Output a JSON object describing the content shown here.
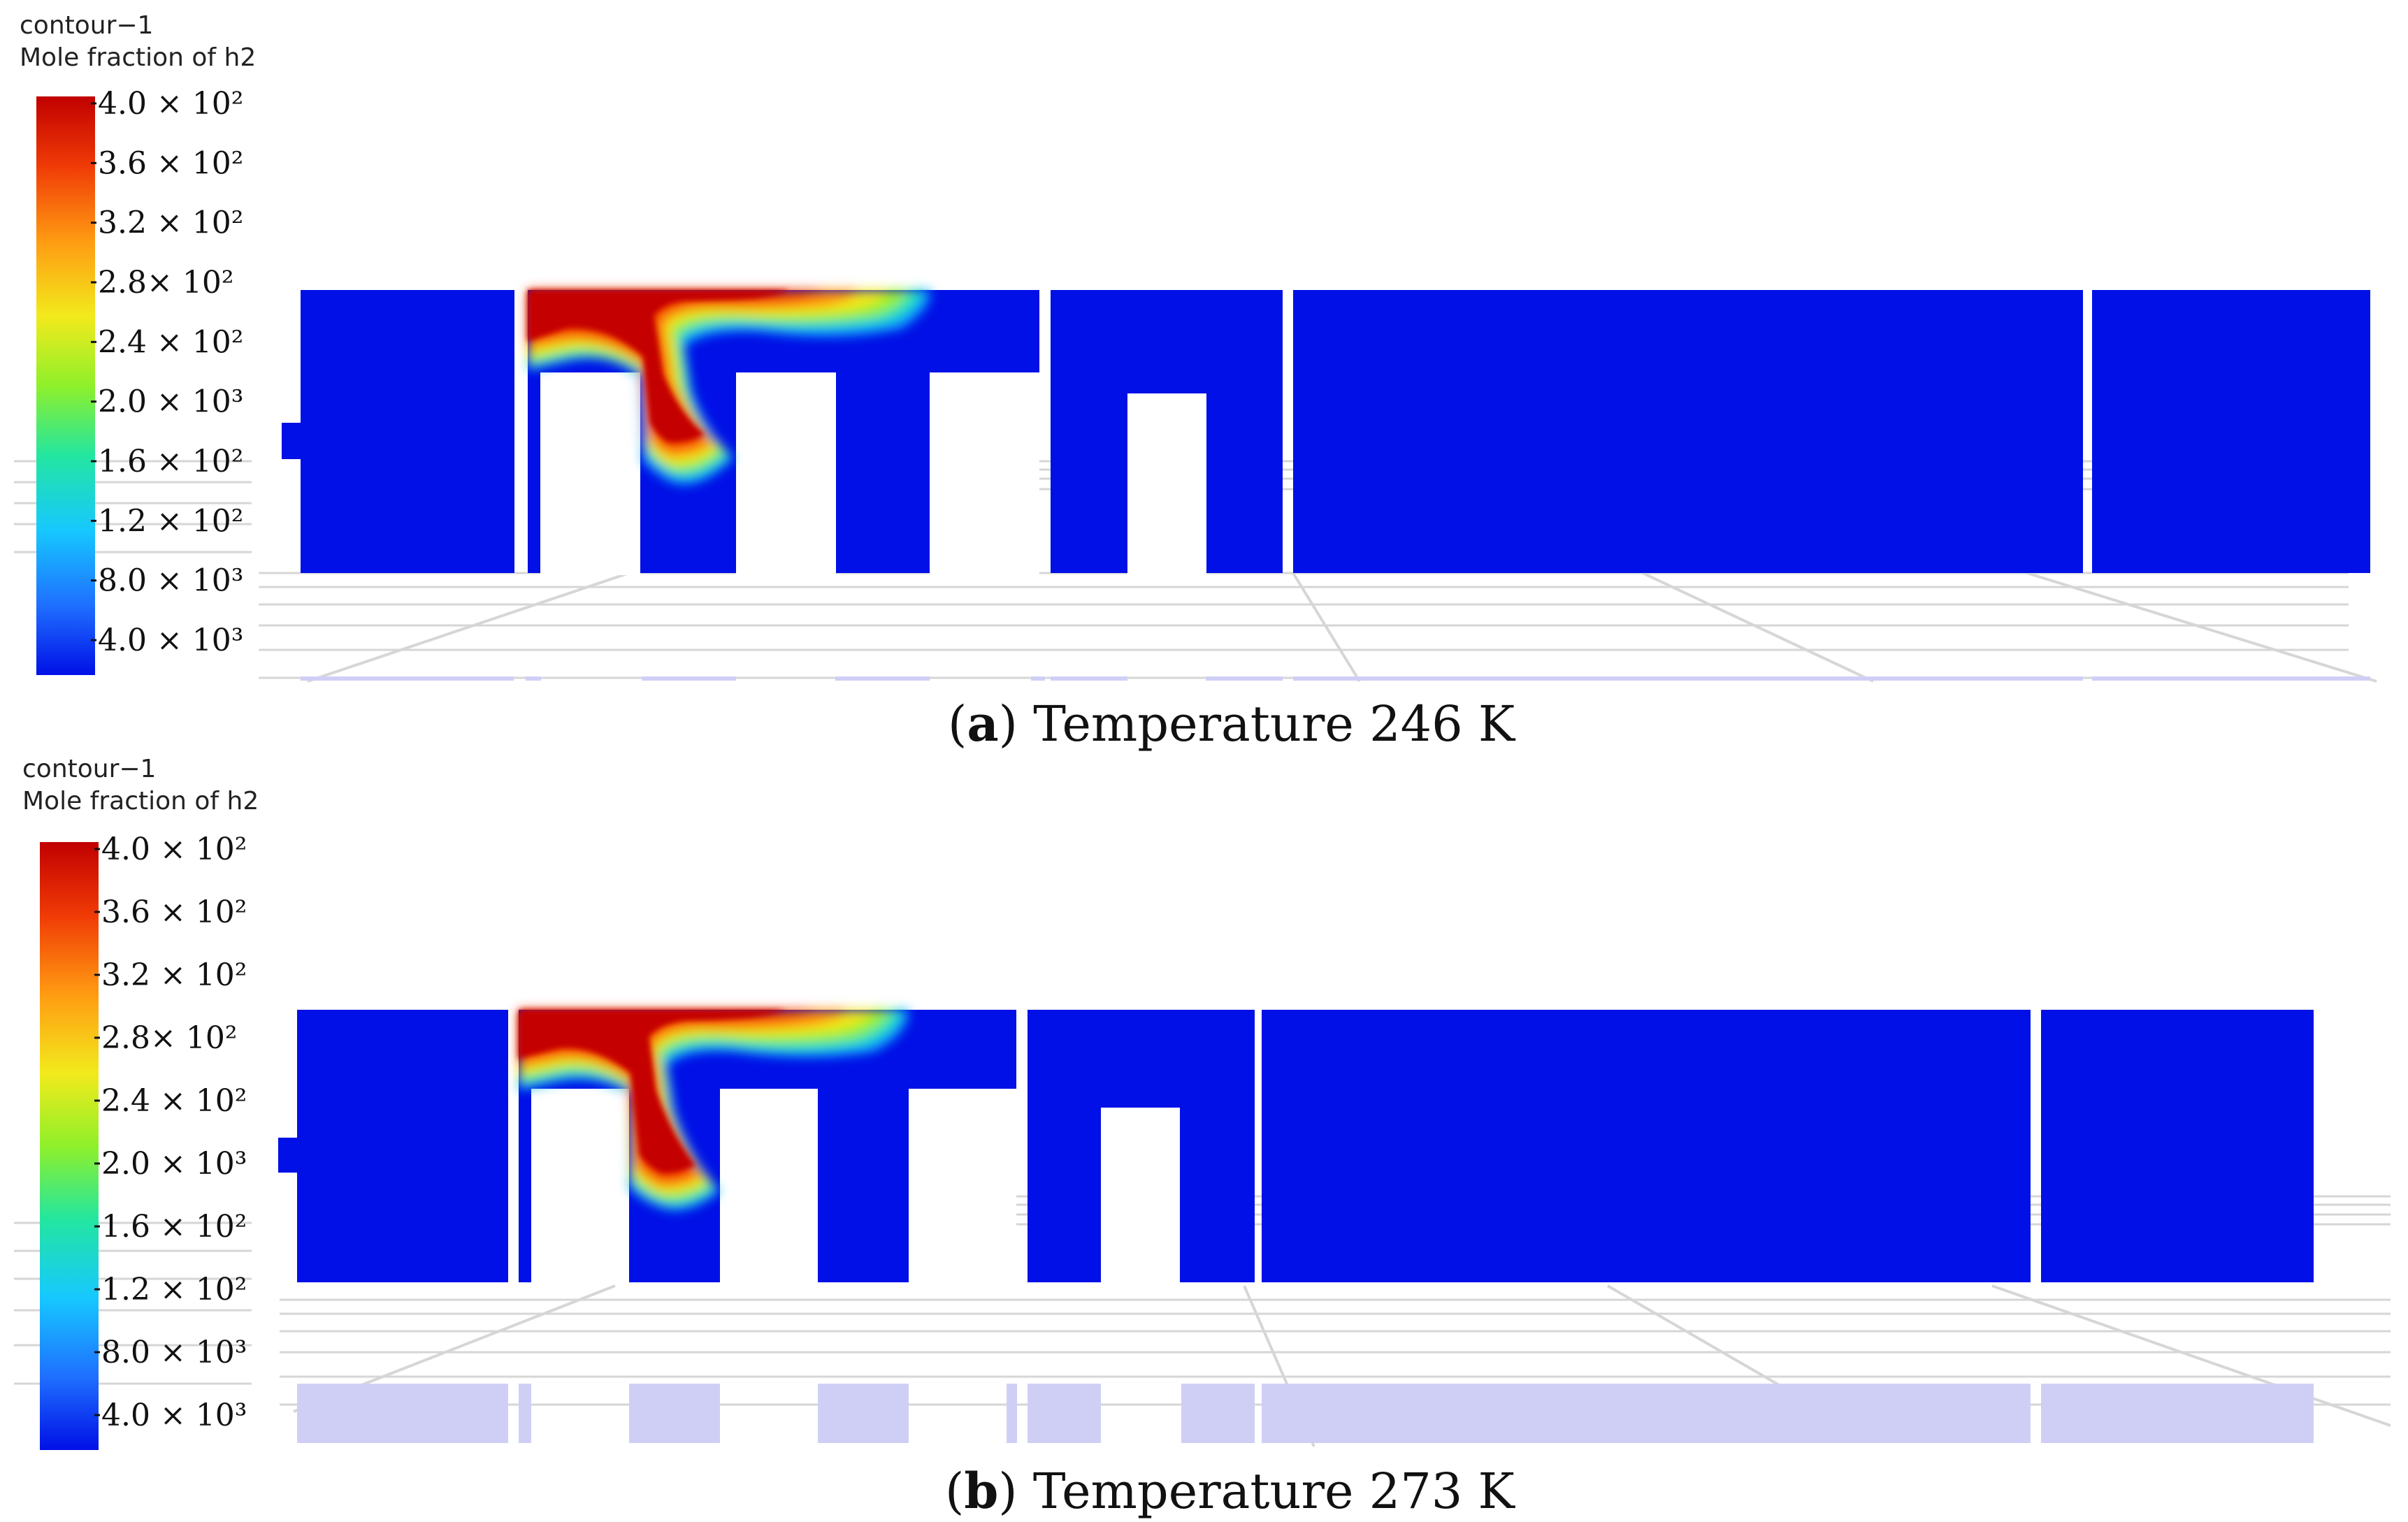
{
  "colors": {
    "background": "#0010e6",
    "plume_core": "#c40000",
    "shadow": "#cfcff6",
    "grid": "#d6d6d6",
    "scale": [
      "#0010e6",
      "#1f6fff",
      "#16c8ff",
      "#23e6a0",
      "#8ff02a",
      "#f2ea1c",
      "#ff9b12",
      "#f03a06",
      "#c00000"
    ]
  },
  "panels": [
    {
      "colorbar_title": "contour−1",
      "colorbar_subtitle": "Mole fraction of h2",
      "ticks": [
        "4.0 × 10²",
        "3.6 × 10²",
        "3.2 × 10²",
        "2.8× 10²",
        "2.4 × 10²",
        "2.0 × 10³",
        "1.6 × 10²",
        "1.2 × 10²",
        "8.0 × 10³",
        "4.0 × 10³"
      ],
      "caption_letter": "a",
      "caption_text": " Temperature 246 K"
    },
    {
      "colorbar_title": "contour−1",
      "colorbar_subtitle": "Mole fraction of h2",
      "ticks": [
        "4.0 × 10²",
        "3.6 × 10²",
        "3.2 × 10²",
        "2.8× 10²",
        "2.4 × 10²",
        "2.0 × 10³",
        "1.6 × 10²",
        "1.2 × 10²",
        "8.0 × 10³",
        "4.0 × 10³"
      ],
      "caption_letter": "b",
      "caption_text": " Temperature 273 K"
    }
  ]
}
